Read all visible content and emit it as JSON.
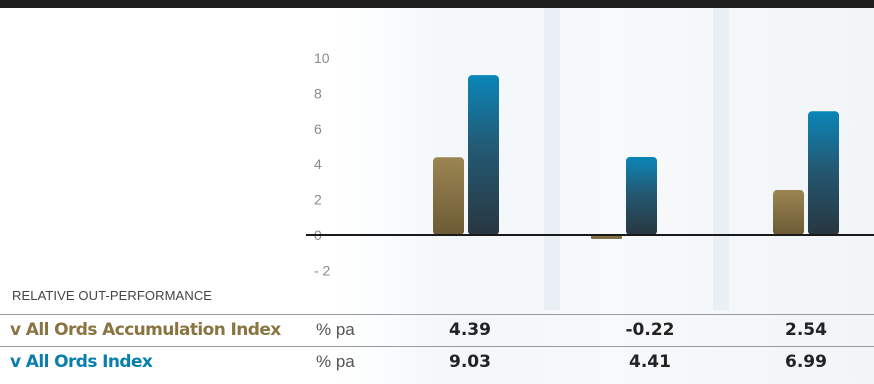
{
  "chart_data": {
    "type": "bar",
    "categories": [
      "",
      "",
      ""
    ],
    "series": [
      {
        "name": "v All Ords Accumulation Index",
        "values": [
          4.39,
          -0.22,
          2.54
        ],
        "color": "#8a7442"
      },
      {
        "name": "v All Ords Index",
        "values": [
          9.03,
          4.41,
          6.99
        ],
        "color": "#0a7fae"
      }
    ],
    "y_ticks": [
      "10",
      "8",
      "6",
      "4",
      "2",
      "0",
      "- 2"
    ],
    "ylim": [
      -2,
      10
    ],
    "xlabel": "",
    "ylabel": "",
    "caption": "RELATIVE OUT-PERFORMANCE",
    "unit": "% pa"
  }
}
